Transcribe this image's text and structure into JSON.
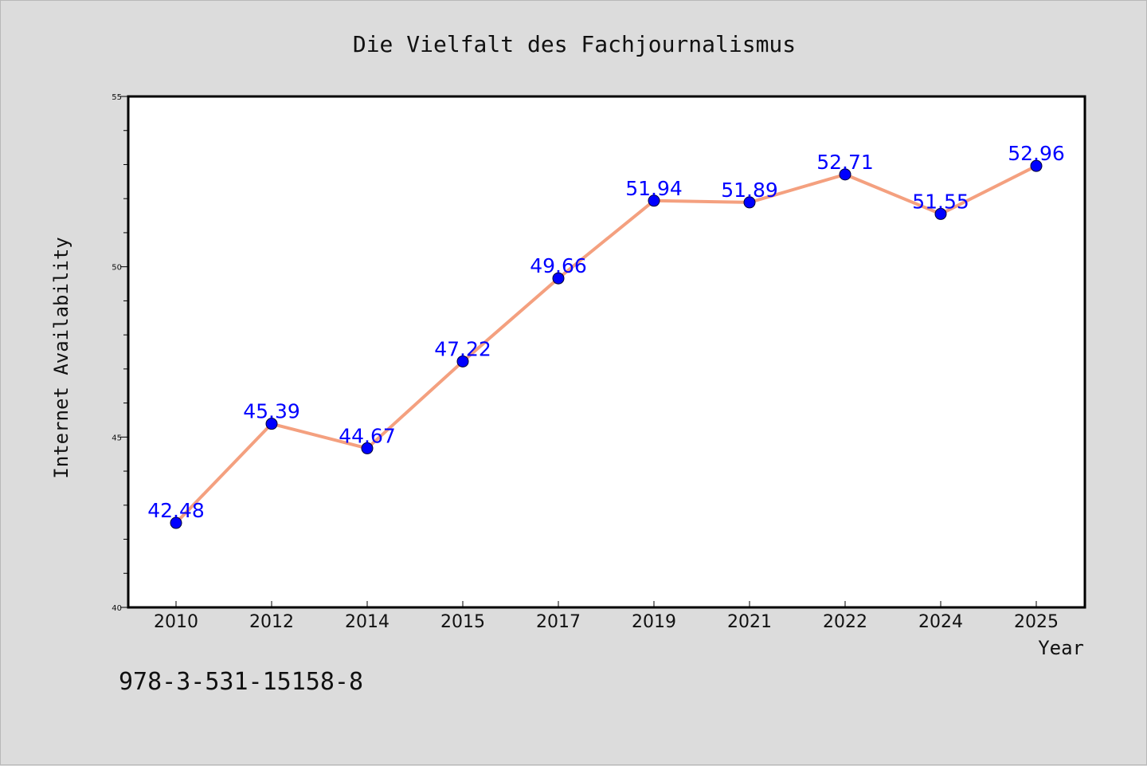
{
  "chart_data": {
    "type": "line",
    "title": "Die Vielfalt des Fachjournalismus",
    "xlabel": "Year",
    "ylabel": "Internet Availability",
    "categories": [
      "2010",
      "2012",
      "2014",
      "2015",
      "2017",
      "2019",
      "2021",
      "2022",
      "2024",
      "2025"
    ],
    "series": [
      {
        "values": [
          42.48,
          45.39,
          44.67,
          47.22,
          49.66,
          51.94,
          51.89,
          52.71,
          51.55,
          52.96
        ],
        "line_color": "#f4a07f",
        "marker_color": "#0000ff"
      }
    ],
    "ylim": [
      40,
      55
    ],
    "yticks": [
      "40",
      "45",
      "50",
      "55"
    ],
    "grid": false,
    "data_labels": true,
    "label_color": "#0000ff"
  },
  "footer": {
    "isbn": "978-3-531-15158-8"
  }
}
